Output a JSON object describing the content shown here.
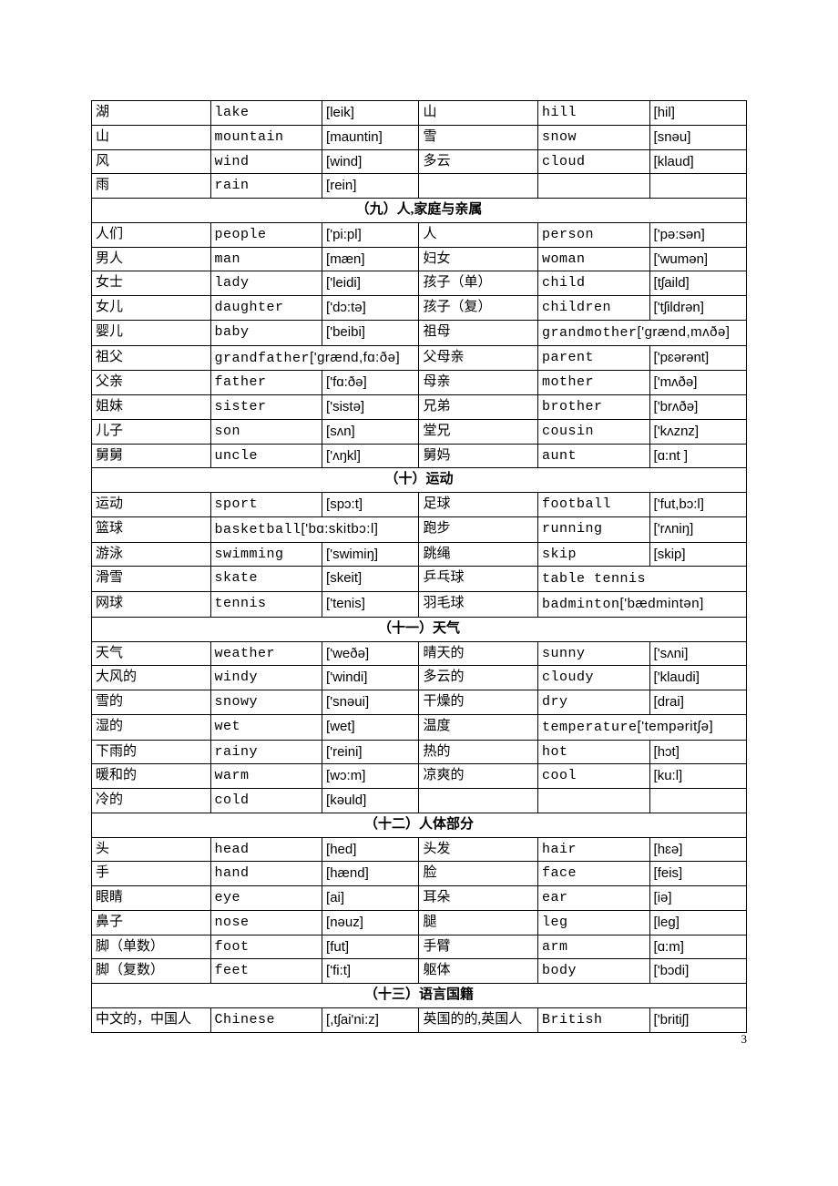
{
  "page_number": "3",
  "sections": [
    {
      "rows": [
        {
          "cn": "湖",
          "en": "lake",
          "ipa": "[leik]",
          "cn2": "山",
          "en2": "hill",
          "ipa2": "[hil]"
        },
        {
          "cn": "山",
          "en": "mountain",
          "ipa": "[mauntin]",
          "cn2": "雪",
          "en2": "snow",
          "ipa2": "[snəu]"
        },
        {
          "cn": "风",
          "en": "wind",
          "ipa": "[wind]",
          "cn2": "多云",
          "en2": "cloud",
          "ipa2": "[klaud]"
        },
        {
          "cn": "雨",
          "en": "rain",
          "ipa": "[rein]",
          "cn2": "",
          "en2": "",
          "ipa2": ""
        }
      ]
    },
    {
      "title": "（九）人,家庭与亲属",
      "title_style": "big",
      "rows": [
        {
          "cn": "人们",
          "en": "people",
          "ipa": "['pi:pl]",
          "cn2": "人",
          "en2": "person",
          "ipa2": "['pə:sən]"
        },
        {
          "cn": "男人",
          "en": "man",
          "ipa": "[mæn]",
          "cn2": "妇女",
          "en2": "woman",
          "ipa2": "['wumən]"
        },
        {
          "cn": "女士",
          "en": "lady",
          "ipa": "['leidi]",
          "cn2": "孩子（单）",
          "en2": "child",
          "ipa2": "[tʃaild]"
        },
        {
          "cn": "女儿",
          "en": "daughter",
          "ipa": "['dɔ:tə]",
          "cn2": "孩子（复）",
          "en2": "children",
          "ipa2": "['tʃildrən]"
        },
        {
          "cn": "婴儿",
          "en": "baby",
          "ipa": "['beibi]",
          "cn2": "祖母",
          "en2": "grandmother",
          "ipa2": "['grænd,mʌðə]",
          "merge_right": true
        },
        {
          "cn": "祖父",
          "en": "grandfather",
          "ipa": "['grænd,fɑ:ðə]",
          "cn2": "父母亲",
          "en2": "parent",
          "ipa2": "['pɛərənt]",
          "merge_left": true
        },
        {
          "cn": "父亲",
          "en": "father",
          "ipa": "['fɑ:ðə]",
          "cn2": "母亲",
          "en2": "mother",
          "ipa2": "['mʌðə]"
        },
        {
          "cn": "姐妹",
          "en": "sister",
          "ipa": "['sistə]",
          "cn2": "兄弟",
          "en2": "brother",
          "ipa2": "['brʌðə]"
        },
        {
          "cn": "儿子",
          "en": "son",
          "ipa": "[sʌn]",
          "cn2": "堂兄",
          "en2": "cousin",
          "ipa2": "['kʌznz]"
        },
        {
          "cn": "舅舅",
          "en": "uncle",
          "ipa": "['ʌŋkl]",
          "cn2": "舅妈",
          "en2": "aunt",
          "ipa2": "[ɑ:nt ]"
        }
      ]
    },
    {
      "title": "（十）运动",
      "title_style": "big",
      "rows": [
        {
          "cn": "运动",
          "en": "sport",
          "ipa": "[spɔ:t]",
          "cn2": "足球",
          "en2": "football",
          "ipa2": "['fut,bɔ:l]"
        },
        {
          "cn": "篮球",
          "en": "basketball",
          "ipa": "['bɑ:skitbɔ:l]",
          "cn2": "跑步",
          "en2": "running",
          "ipa2": "['rʌniŋ]",
          "merge_left": true
        },
        {
          "cn": "游泳",
          "en": "swimming",
          "ipa": "['swimiŋ]",
          "cn2": "跳绳",
          "en2": "skip",
          "ipa2": "[skip]"
        },
        {
          "cn": "滑雪",
          "en": "skate",
          "ipa": "[skeit]",
          "cn2": "乒乓球",
          "en2": "table tennis",
          "ipa2": "",
          "merge_right": true
        },
        {
          "cn": "网球",
          "en": "tennis",
          "ipa": "['tenis]",
          "cn2": "羽毛球",
          "en2": "badminton",
          "ipa2": "['bædmintən]",
          "merge_right": true
        }
      ]
    },
    {
      "title": "（十一）天气",
      "title_style": "big",
      "rows": [
        {
          "cn": "天气",
          "en": "weather",
          "ipa": "['weðə]",
          "cn2": "晴天的",
          "en2": "sunny",
          "ipa2": "['sʌni]"
        },
        {
          "cn": "大风的",
          "en": "windy",
          "ipa": "['windi]",
          "cn2": "多云的",
          "en2": "cloudy",
          "ipa2": "['klaudi]"
        },
        {
          "cn": "雪的",
          "en": "snowy",
          "ipa": "['snəui]",
          "cn2": "干燥的",
          "en2": "dry",
          "ipa2": "[drai]"
        },
        {
          "cn": "湿的",
          "en": "wet",
          "ipa": "[wet]",
          "cn2": "温度",
          "en2": "temperature",
          "ipa2": "['tempəritʃə]",
          "merge_right": true
        },
        {
          "cn": "下雨的",
          "en": "rainy",
          "ipa": "['reini]",
          "cn2": "热的",
          "en2": "hot",
          "ipa2": "[hɔt]"
        },
        {
          "cn": "暖和的",
          "en": "warm",
          "ipa": "[wɔ:m]",
          "cn2": "凉爽的",
          "en2": "cool",
          "ipa2": "[ku:l]"
        },
        {
          "cn": "冷的",
          "en": "cold",
          "ipa": "[kəuld]",
          "cn2": "",
          "en2": "",
          "ipa2": ""
        }
      ]
    },
    {
      "title": "（十二）人体部分",
      "title_style": "small",
      "rows": [
        {
          "cn": "头",
          "en": "head",
          "ipa": "[hed]",
          "cn2": "头发",
          "en2": "hair",
          "ipa2": "[hɛə]"
        },
        {
          "cn": "手",
          "en": "hand",
          "ipa": "[hænd]",
          "cn2": "脸",
          "en2": "face",
          "ipa2": "[feis]"
        },
        {
          "cn": "眼睛",
          "en": "eye",
          "ipa": "[ai]",
          "cn2": "耳朵",
          "en2": "ear",
          "ipa2": "[iə]"
        },
        {
          "cn": "鼻子",
          "en": "nose",
          "ipa": "[nəuz]",
          "cn2": "腿",
          "en2": "leg",
          "ipa2": "[leg]"
        },
        {
          "cn": "脚（单数）",
          "en": "foot",
          "ipa": "[fut]",
          "cn2": "手臂",
          "en2": "arm",
          "ipa2": "[ɑ:m]"
        },
        {
          "cn": "脚（复数）",
          "en": "feet",
          "ipa": "['fi:t]",
          "cn2": "躯体",
          "en2": "body",
          "ipa2": "['bɔdi]"
        }
      ]
    },
    {
      "title": "（十三）语言国籍",
      "title_style": "big",
      "rows": [
        {
          "cn": "中文的，中国人",
          "en": "Chinese",
          "ipa": "[,tʃai'ni:z]",
          "cn2": "英国的的,英国人",
          "en2": "British",
          "ipa2": "['britiʃ]"
        }
      ]
    }
  ]
}
